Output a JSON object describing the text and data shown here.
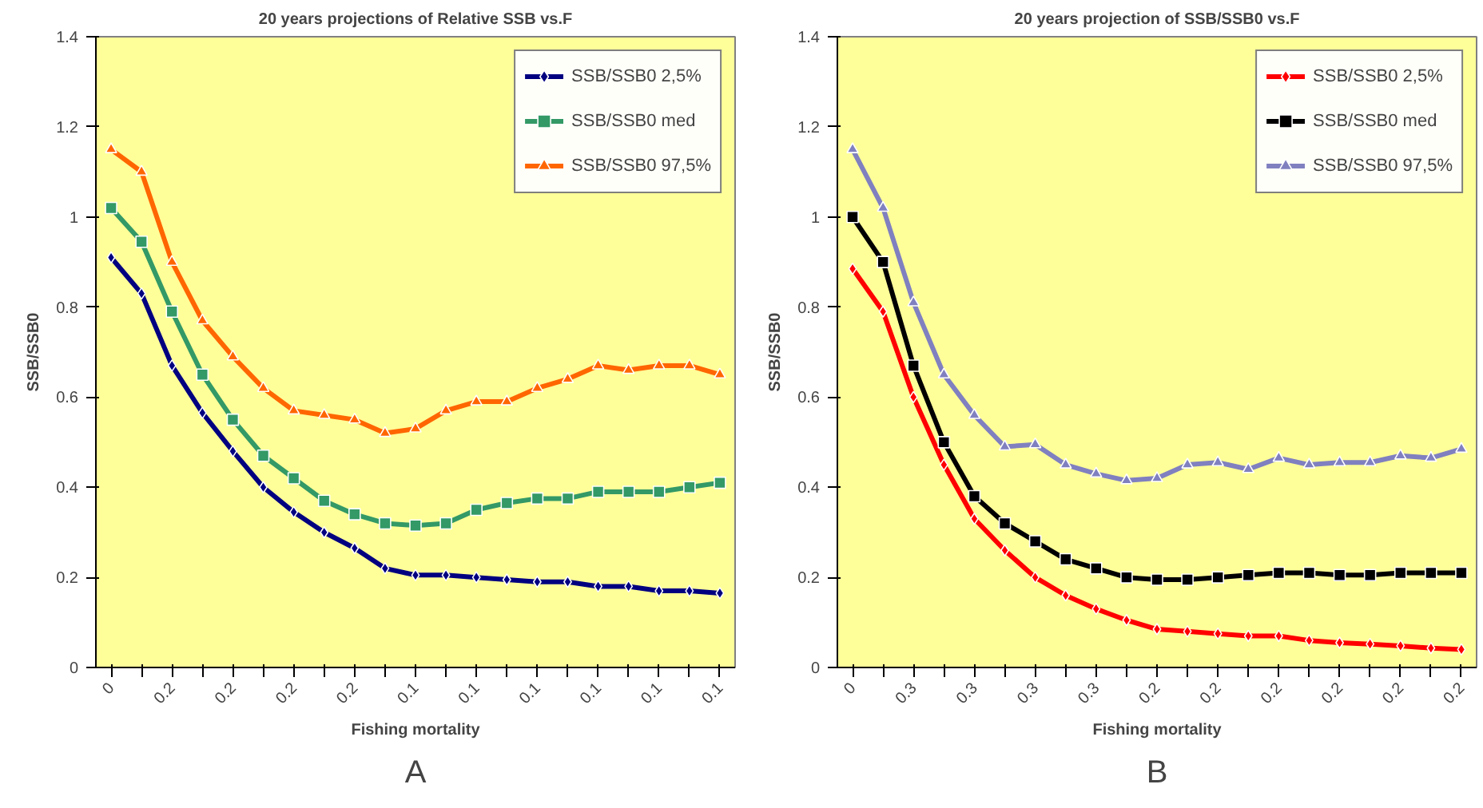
{
  "chart_data": [
    {
      "type": "line",
      "title": "20 years projections of Relative SSB vs.F",
      "xlabel": "Fishing mortality",
      "ylabel": "SSB/SSB0",
      "categories": [
        "0",
        null,
        "0.2",
        null,
        "0.2",
        null,
        "0.2",
        null,
        "0.2",
        null,
        "0.1",
        null,
        "0.1",
        null,
        "0.1",
        null,
        "0.1",
        null,
        "0.1",
        null,
        "0.1"
      ],
      "ylim": [
        0,
        1.4
      ],
      "yticks": [
        0,
        0.2,
        0.4,
        0.6,
        0.8,
        1,
        1.2,
        1.4
      ],
      "grid": false,
      "legend": "top right",
      "line_style": "solid",
      "series": [
        {
          "name": "SSB/SSB0 2,5%",
          "color": "#000080",
          "marker": "diamond",
          "values": [
            0.91,
            0.83,
            0.67,
            0.565,
            0.48,
            0.4,
            0.345,
            0.3,
            0.265,
            0.22,
            0.205,
            0.205,
            0.2,
            0.195,
            0.19,
            0.19,
            0.18,
            0.18,
            0.17,
            0.17,
            0.165
          ]
        },
        {
          "name": "SSB/SSB0 med",
          "color": "#339966",
          "marker": "square",
          "values": [
            1.02,
            0.945,
            0.79,
            0.65,
            0.55,
            0.47,
            0.42,
            0.37,
            0.34,
            0.32,
            0.315,
            0.32,
            0.35,
            0.365,
            0.375,
            0.375,
            0.39,
            0.39,
            0.39,
            0.4,
            0.41
          ]
        },
        {
          "name": "SSB/SSB0 97,5%",
          "color": "#ff6600",
          "marker": "triangle",
          "values": [
            1.15,
            1.1,
            0.9,
            0.77,
            0.69,
            0.62,
            0.57,
            0.56,
            0.55,
            0.52,
            0.53,
            0.57,
            0.59,
            0.59,
            0.62,
            0.64,
            0.67,
            0.66,
            0.67,
            0.67,
            0.65
          ]
        }
      ],
      "annotations": [
        "A"
      ]
    },
    {
      "type": "line",
      "title": "20 years projection of SSB/SSB0 vs.F",
      "xlabel": "Fishing mortality",
      "ylabel": "SSB/SSB0",
      "categories": [
        "0",
        null,
        "0.3",
        null,
        "0.3",
        null,
        "0.3",
        null,
        "0.3",
        null,
        "0.2",
        null,
        "0.2",
        null,
        "0.2",
        null,
        "0.2",
        null,
        "0.2",
        null,
        "0.2"
      ],
      "ylim": [
        0,
        1.4
      ],
      "yticks": [
        0,
        0.2,
        0.4,
        0.6,
        0.8,
        1,
        1.2,
        1.4
      ],
      "grid": false,
      "legend": "top right",
      "line_style": "solid",
      "series": [
        {
          "name": "SSB/SSB0 2,5%",
          "color": "#ff0000",
          "marker": "diamond",
          "values": [
            0.885,
            0.79,
            0.6,
            0.45,
            0.33,
            0.26,
            0.2,
            0.16,
            0.13,
            0.105,
            0.085,
            0.08,
            0.075,
            0.07,
            0.07,
            0.06,
            0.055,
            0.052,
            0.048,
            0.043,
            0.04
          ]
        },
        {
          "name": "SSB/SSB0 med",
          "color": "#000000",
          "marker": "square",
          "values": [
            1.0,
            0.9,
            0.67,
            0.5,
            0.38,
            0.32,
            0.28,
            0.24,
            0.22,
            0.2,
            0.195,
            0.195,
            0.2,
            0.205,
            0.21,
            0.21,
            0.205,
            0.205,
            0.21,
            0.21,
            0.21
          ]
        },
        {
          "name": "SSB/SSB0 97,5%",
          "color": "#8080c0",
          "marker": "triangle",
          "values": [
            1.15,
            1.02,
            0.81,
            0.65,
            0.56,
            0.49,
            0.495,
            0.45,
            0.43,
            0.415,
            0.42,
            0.45,
            0.455,
            0.44,
            0.465,
            0.45,
            0.455,
            0.455,
            0.47,
            0.465,
            0.485
          ]
        }
      ],
      "annotations": [
        "B"
      ]
    }
  ]
}
